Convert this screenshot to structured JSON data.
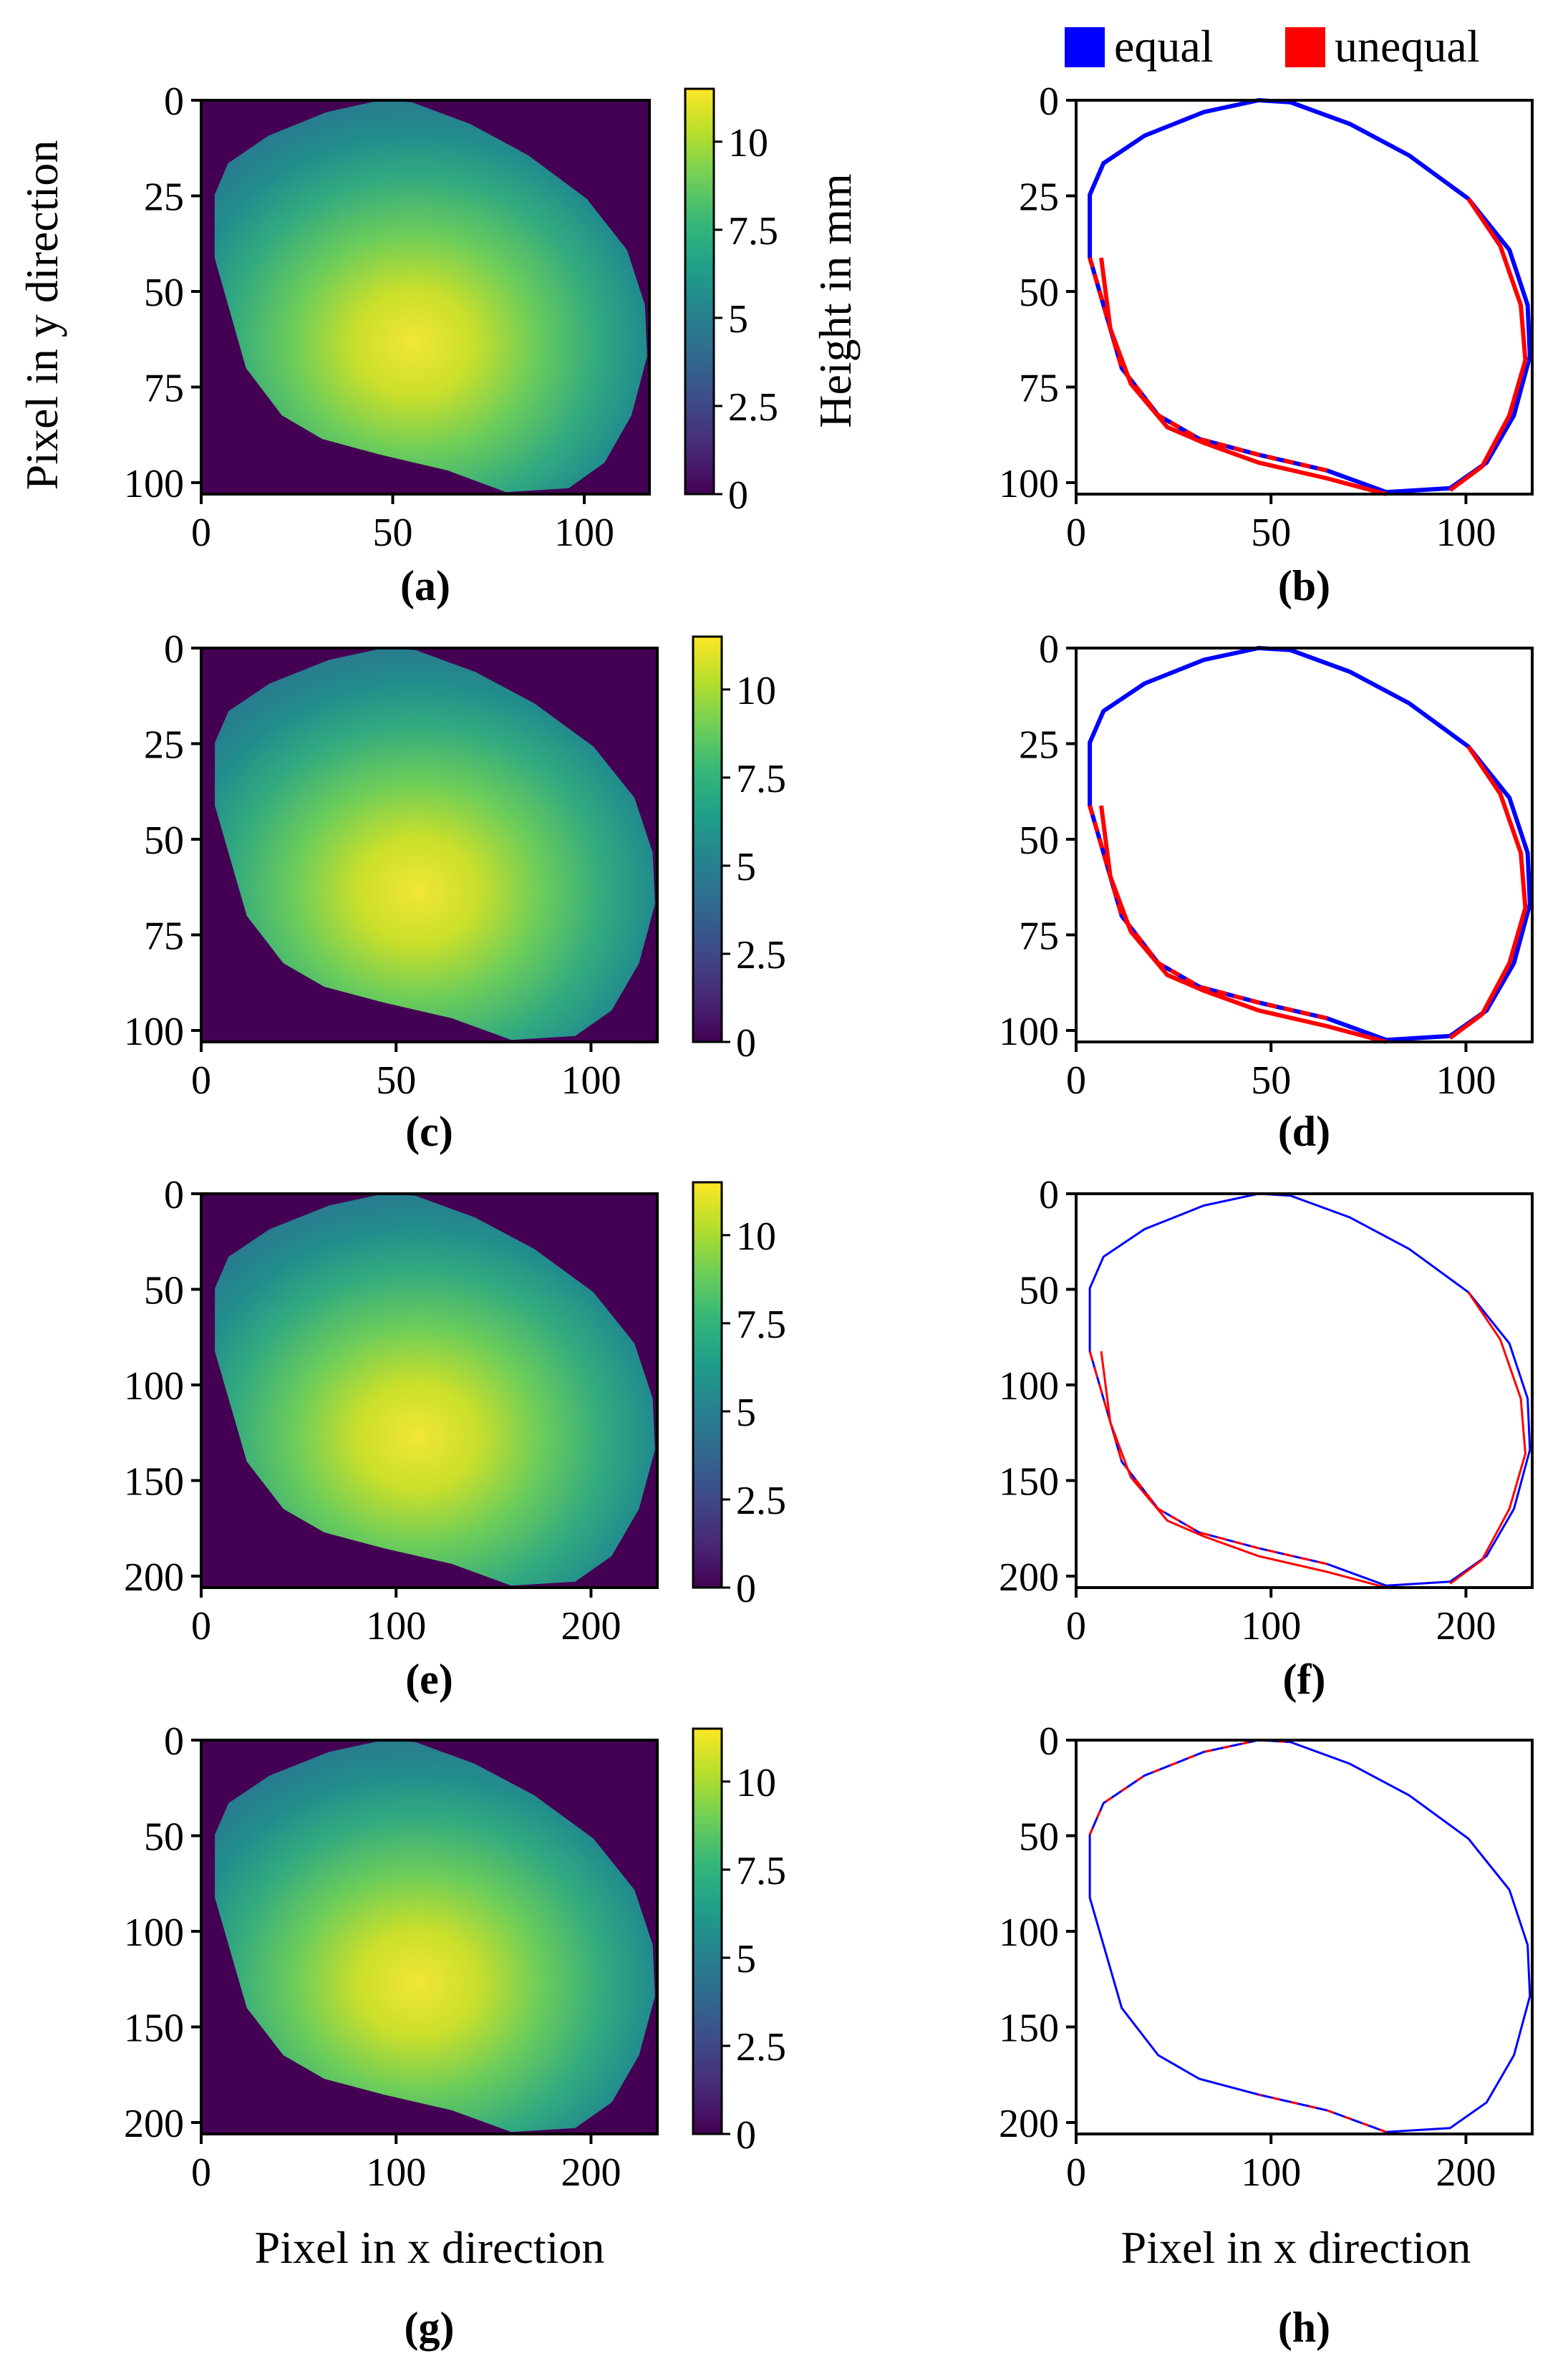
{
  "legend": {
    "placement": "top-right",
    "items": [
      {
        "label": "equal",
        "color": "#0000ff"
      },
      {
        "label": "unequal",
        "color": "#ff0000"
      }
    ]
  },
  "labels": {
    "ylabel": "Pixel in y direction",
    "xlabel": "Pixel in x direction",
    "colorbar": "Height in mm"
  },
  "colors": {
    "viridis": [
      "#440154",
      "#482878",
      "#3e4989",
      "#31688e",
      "#26828e",
      "#1f9e89",
      "#35b779",
      "#6ece58",
      "#b5de2b",
      "#fde725"
    ],
    "equal": "#0000ff",
    "unequal": "#ff0000"
  },
  "chart_data": [
    {
      "panel": "(a)",
      "type": "heatmap",
      "xlim": [
        0,
        117
      ],
      "ylim": [
        103,
        0
      ],
      "xticks": [
        "0",
        "50",
        "100"
      ],
      "yticks": [
        "0",
        "25",
        "50",
        "75",
        "100"
      ],
      "colorbar": {
        "range": [
          0,
          11.5
        ],
        "ticks": [
          "0",
          "2.5",
          "5",
          "7.5",
          "10"
        ]
      }
    },
    {
      "panel": "(b)",
      "type": "line",
      "xlim": [
        0,
        117
      ],
      "ylim": [
        103,
        0
      ],
      "xticks": [
        "0",
        "50",
        "100"
      ],
      "yticks": [
        "0",
        "25",
        "50",
        "75",
        "100"
      ]
    },
    {
      "panel": "(c)",
      "type": "heatmap",
      "xlim": [
        0,
        117
      ],
      "ylim": [
        103,
        0
      ],
      "xticks": [
        "0",
        "50",
        "100"
      ],
      "yticks": [
        "0",
        "25",
        "50",
        "75",
        "100"
      ],
      "colorbar": {
        "range": [
          0,
          11.5
        ],
        "ticks": [
          "0",
          "2.5",
          "5",
          "7.5",
          "10"
        ]
      }
    },
    {
      "panel": "(d)",
      "type": "line",
      "xlim": [
        0,
        117
      ],
      "ylim": [
        103,
        0
      ],
      "xticks": [
        "0",
        "50",
        "100"
      ],
      "yticks": [
        "0",
        "25",
        "50",
        "75",
        "100"
      ]
    },
    {
      "panel": "(e)",
      "type": "heatmap",
      "xlim": [
        0,
        234
      ],
      "ylim": [
        206,
        0
      ],
      "xticks": [
        "0",
        "100",
        "200"
      ],
      "yticks": [
        "0",
        "50",
        "100",
        "150",
        "200"
      ],
      "colorbar": {
        "range": [
          0,
          11.5
        ],
        "ticks": [
          "0",
          "2.5",
          "5",
          "7.5",
          "10"
        ]
      }
    },
    {
      "panel": "(f)",
      "type": "line",
      "xlim": [
        0,
        234
      ],
      "ylim": [
        206,
        0
      ],
      "xticks": [
        "0",
        "100",
        "200"
      ],
      "yticks": [
        "0",
        "50",
        "100",
        "150",
        "200"
      ]
    },
    {
      "panel": "(g)",
      "type": "heatmap",
      "xlim": [
        0,
        234
      ],
      "ylim": [
        206,
        0
      ],
      "xticks": [
        "0",
        "100",
        "200"
      ],
      "yticks": [
        "0",
        "50",
        "100",
        "150",
        "200"
      ],
      "colorbar": {
        "range": [
          0,
          11.5
        ],
        "ticks": [
          "0",
          "2.5",
          "5",
          "7.5",
          "10"
        ]
      }
    },
    {
      "panel": "(h)",
      "type": "line",
      "xlim": [
        0,
        234
      ],
      "ylim": [
        206,
        0
      ],
      "xticks": [
        "0",
        "100",
        "200"
      ],
      "yticks": [
        "0",
        "50",
        "100",
        "150",
        "200"
      ]
    }
  ]
}
